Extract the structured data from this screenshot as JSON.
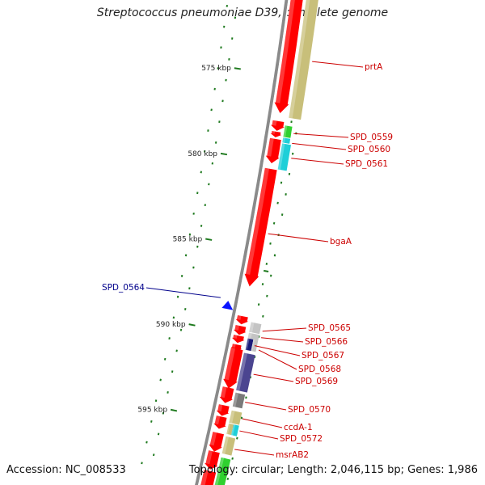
{
  "title": "Streptococcus pneumoniae D39, complete genome",
  "accession": "Accession: NC_008533",
  "summary": "Topology: circular; Length: 2,046,115 bp; Genes: 1,986",
  "kbp_labels": [
    {
      "text": "575 kbp",
      "kb": 575
    },
    {
      "text": "580 kbp",
      "kb": 580
    },
    {
      "text": "585 kbp",
      "kb": 585
    },
    {
      "text": "590 kbp",
      "kb": 590
    },
    {
      "text": "595 kbp",
      "kb": 595
    }
  ],
  "gene_labels": [
    {
      "text": "prtA",
      "color": "#cc0000"
    },
    {
      "text": "SPD_0559",
      "color": "#cc0000"
    },
    {
      "text": "SPD_0560",
      "color": "#cc0000"
    },
    {
      "text": "SPD_0561",
      "color": "#cc0000"
    },
    {
      "text": "bgaA",
      "color": "#cc0000"
    },
    {
      "text": "SPD_0564",
      "color": "#00008b"
    },
    {
      "text": "SPD_0565",
      "color": "#cc0000"
    },
    {
      "text": "SPD_0566",
      "color": "#cc0000"
    },
    {
      "text": "SPD_0567",
      "color": "#cc0000"
    },
    {
      "text": "SPD_0568",
      "color": "#cc0000"
    },
    {
      "text": "SPD_0569",
      "color": "#cc0000"
    },
    {
      "text": "SPD_0570",
      "color": "#cc0000"
    },
    {
      "text": "ccdA-1",
      "color": "#cc0000"
    },
    {
      "text": "SPD_0572",
      "color": "#cc0000"
    },
    {
      "text": "msrAB2",
      "color": "#cc0000"
    }
  ],
  "colors": {
    "backbone": "#8a8a8a",
    "cds": "#ff0000",
    "tan": "#c8bf7a",
    "cyan": "#1ecfd8",
    "green": "#2fd12f",
    "navy": "#1a1a7a",
    "indigo": "#4b4590",
    "gray": "#7a7a7a",
    "lightgray": "#c4c4c4",
    "blue": "#0a14ff",
    "tick": "#1f7a1f"
  }
}
